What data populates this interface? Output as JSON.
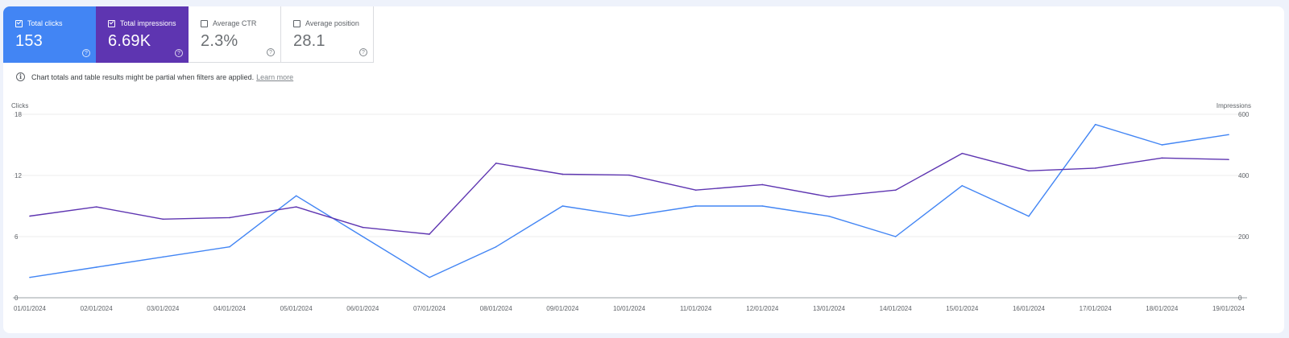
{
  "metrics": [
    {
      "key": "clicks",
      "label": "Total clicks",
      "value": "153",
      "checked": true,
      "help": "?"
    },
    {
      "key": "impr",
      "label": "Total impressions",
      "value": "6.69K",
      "checked": true,
      "help": "?"
    },
    {
      "key": "off",
      "label": "Average CTR",
      "value": "2.3%",
      "checked": false,
      "help": "?"
    },
    {
      "key": "off",
      "label": "Average position",
      "value": "28.1",
      "checked": false,
      "help": "?"
    }
  ],
  "notice": {
    "icon": "i",
    "text": "Chart totals and table results might be partial when filters are applied.",
    "link": "Learn more"
  },
  "chart_data": {
    "type": "line",
    "left_axis": {
      "label": "Clicks",
      "ticks": [
        0,
        6,
        12,
        18
      ],
      "ylim": [
        0,
        18
      ]
    },
    "right_axis": {
      "label": "Impressions",
      "ticks": [
        0,
        200,
        400,
        600
      ],
      "ylim": [
        0,
        600
      ]
    },
    "x": [
      "01/01/2024",
      "02/01/2024",
      "03/01/2024",
      "04/01/2024",
      "05/01/2024",
      "06/01/2024",
      "07/01/2024",
      "08/01/2024",
      "09/01/2024",
      "10/01/2024",
      "11/01/2024",
      "12/01/2024",
      "13/01/2024",
      "14/01/2024",
      "15/01/2024",
      "16/01/2024",
      "17/01/2024",
      "18/01/2024",
      "19/01/2024"
    ],
    "series": [
      {
        "key": "clicks",
        "axis": "left",
        "color": "#4285f4",
        "values": [
          2,
          3,
          4,
          5,
          10,
          6,
          2,
          5,
          9,
          8,
          9,
          9,
          8,
          6,
          11,
          8,
          17,
          15,
          16
        ]
      },
      {
        "key": "impressions",
        "axis": "right",
        "color": "#5e35b1",
        "values": [
          267,
          297,
          257,
          262,
          297,
          230,
          208,
          440,
          404,
          401,
          352,
          370,
          330,
          352,
          472,
          415,
          424,
          457,
          452
        ]
      }
    ],
    "grid": true
  }
}
